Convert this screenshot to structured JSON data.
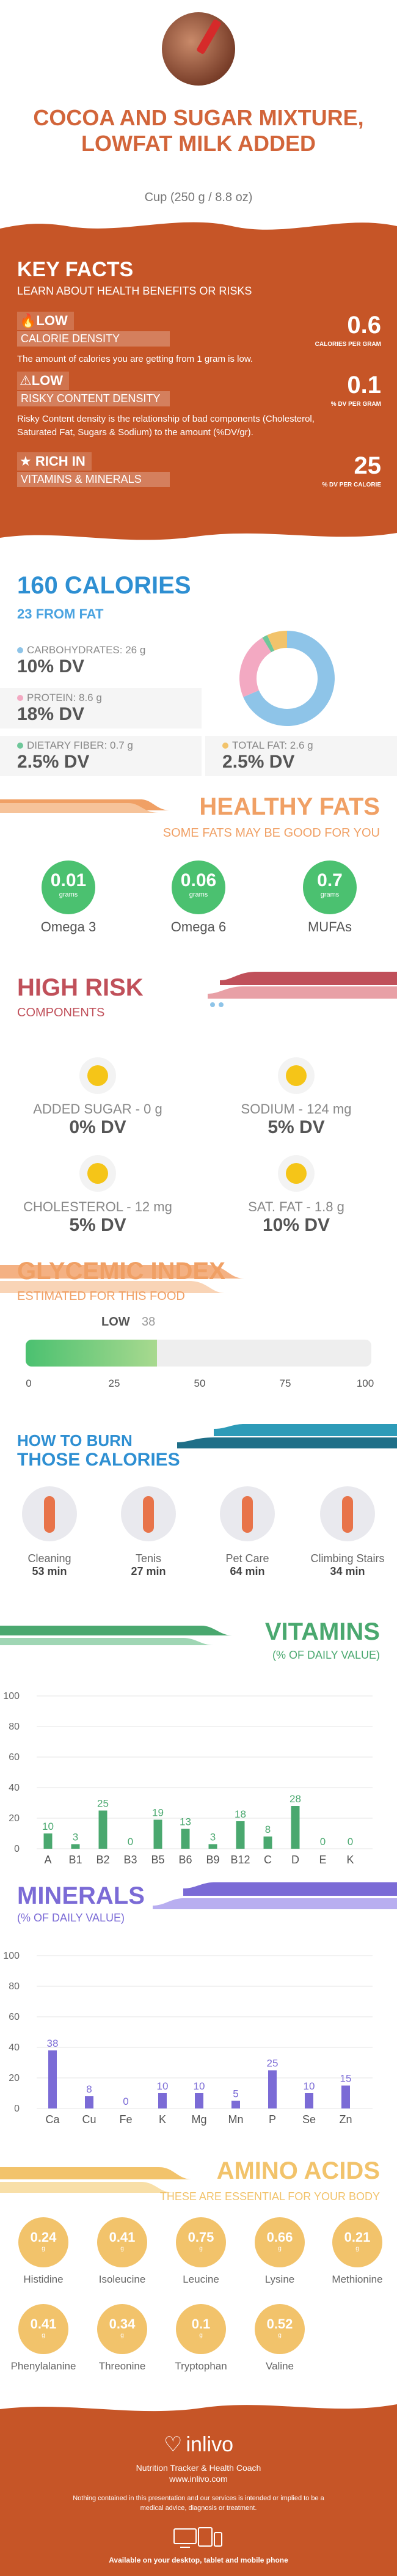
{
  "header": {
    "title": "COCOA AND SUGAR MIXTURE, LOWFAT MILK ADDED",
    "serving": "Cup (250 g / 8.8 oz)"
  },
  "key_facts": {
    "title": "KEY FACTS",
    "subtitle": "LEARN ABOUT HEALTH BENEFITS OR RISKS",
    "rows": [
      {
        "level": "LOW",
        "label": "CALORIE DENSITY",
        "value": "0.6",
        "unit": "CALORIES PER GRAM",
        "desc": "The amount of calories you are getting from 1 gram is low."
      },
      {
        "level": "LOW",
        "label": "RISKY CONTENT DENSITY",
        "value": "0.1",
        "unit": "% DV PER GRAM",
        "desc": "Risky Content density is the relationship of bad components (Cholesterol, Saturated Fat, Sugars & Sodium) to the amount (%DV/gr)."
      },
      {
        "level": "RICH  IN",
        "label": "VITAMINS & MINERALS",
        "value": "25",
        "unit": "% DV PER CALORIE",
        "desc": ""
      }
    ]
  },
  "calories": {
    "title": "160 CALORIES",
    "from_fat": "23 FROM FAT",
    "items": [
      {
        "label": "CARBOHYDRATES: 26 g",
        "dv": "10% DV",
        "color": "#8ec4e8"
      },
      {
        "label": "PROTEIN: 8.6 g",
        "dv": "18% DV",
        "color": "#f3a9c2"
      },
      {
        "label": "DIETARY FIBER: 0.7 g",
        "dv": "2.5% DV",
        "color": "#6fc79a"
      },
      {
        "label": "TOTAL FAT: 2.6 g",
        "dv": "2.5% DV",
        "color": "#f2c36b"
      }
    ],
    "donut": [
      {
        "name": "CARBOHYDRATES",
        "grams": 26,
        "color": "#8ec4e8"
      },
      {
        "name": "PROTEIN",
        "grams": 8.6,
        "color": "#f3a9c2"
      },
      {
        "name": "DIETARY FIBER",
        "grams": 0.7,
        "color": "#6fc79a"
      },
      {
        "name": "TOTAL FAT",
        "grams": 2.6,
        "color": "#f2c36b"
      }
    ]
  },
  "fats": {
    "title": "HEALTHY FATS",
    "subtitle": "SOME FATS MAY BE GOOD FOR YOU",
    "items": [
      {
        "value": "0.01",
        "unit": "grams",
        "label": "Omega 3"
      },
      {
        "value": "0.06",
        "unit": "grams",
        "label": "Omega 6"
      },
      {
        "value": "0.7",
        "unit": "grams",
        "label": "MUFAs"
      }
    ]
  },
  "risk": {
    "title": "HIGH RISK",
    "subtitle": "COMPONENTS",
    "items": [
      {
        "label": "ADDED SUGAR - 0 g",
        "dv": "0% DV"
      },
      {
        "label": "SODIUM - 124 mg",
        "dv": "5% DV"
      },
      {
        "label": "CHOLESTEROL - 12 mg",
        "dv": "5% DV"
      },
      {
        "label": "SAT. FAT - 1.8 g",
        "dv": "10% DV"
      }
    ]
  },
  "glycemic": {
    "title": "GLYCEMIC INDEX",
    "subtitle": "ESTIMATED FOR THIS FOOD",
    "level": "LOW",
    "value": "38",
    "value_num": 38,
    "ticks": [
      "0",
      "25",
      "50",
      "75",
      "100"
    ]
  },
  "burn": {
    "title1": "HOW TO BURN",
    "title2": "THOSE CALORIES",
    "items": [
      {
        "label": "Cleaning",
        "minutes": "53 min"
      },
      {
        "label": "Tenis",
        "minutes": "27 min"
      },
      {
        "label": "Pet Care",
        "minutes": "64 min"
      },
      {
        "label": "Climbing Stairs",
        "minutes": "34 min"
      }
    ]
  },
  "vitamins": {
    "title": "VITAMINS",
    "subtitle": "(% OF DAILY VALUE)",
    "color": "#4aa86f",
    "chart_data": {
      "type": "bar",
      "categories": [
        "A",
        "B1",
        "B2",
        "B3",
        "B5",
        "B6",
        "B9",
        "B12",
        "C",
        "D",
        "E",
        "K"
      ],
      "values": [
        10,
        3,
        25,
        0,
        19,
        13,
        3,
        18,
        8,
        28,
        0,
        0
      ],
      "yticks": [
        "0",
        "20",
        "40",
        "60",
        "80",
        "100"
      ],
      "ylim": [
        0,
        100
      ]
    }
  },
  "minerals": {
    "title": "MINERALS",
    "subtitle": "(% OF DAILY VALUE)",
    "color": "#7b6bd6",
    "chart_data": {
      "type": "bar",
      "categories": [
        "Ca",
        "Cu",
        "Fe",
        "K",
        "Mg",
        "Mn",
        "P",
        "Se",
        "Zn"
      ],
      "values": [
        38,
        8,
        0,
        10,
        10,
        5,
        25,
        10,
        15
      ],
      "yticks": [
        "0",
        "20",
        "40",
        "60",
        "80",
        "100"
      ],
      "ylim": [
        0,
        100
      ]
    }
  },
  "amino": {
    "title": "AMINO ACIDS",
    "subtitle": "THESE ARE ESSENTIAL FOR YOUR BODY",
    "unit": "g",
    "items": [
      {
        "value": "0.24",
        "label": "Histidine"
      },
      {
        "value": "0.41",
        "label": "Isoleucine"
      },
      {
        "value": "0.75",
        "label": "Leucine"
      },
      {
        "value": "0.66",
        "label": "Lysine"
      },
      {
        "value": "0.21",
        "label": "Methionine"
      },
      {
        "value": "0.41",
        "label": "Phenylalanine"
      },
      {
        "value": "0.34",
        "label": "Threonine"
      },
      {
        "value": "0.1",
        "label": "Tryptophan"
      },
      {
        "value": "0.52",
        "label": "Valine"
      }
    ]
  },
  "footer": {
    "brand": "inlivo",
    "tagline": "Nutrition Tracker & Health Coach",
    "url": "www.inlivo.com",
    "disclaimer": "Nothing contained in this presentation and our services is intended or implied to be a medical advice, diagnosis or treatment.",
    "available": "Available on your desktop, tablet and mobile phone"
  }
}
